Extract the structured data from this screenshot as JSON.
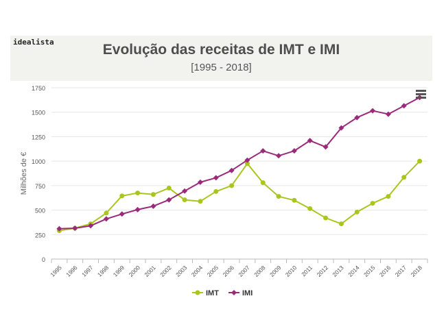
{
  "brand": "idealista",
  "chart_data": {
    "type": "line",
    "title": "Evolução das receitas de IMT e IMI",
    "subtitle": "[1995 - 2018]",
    "xlabel": "",
    "ylabel": "Milhões de €",
    "ylim": [
      0,
      1750
    ],
    "yticks": [
      "0",
      "250",
      "500",
      "750",
      "1000",
      "1250",
      "1500",
      "1750"
    ],
    "categories": [
      "1995",
      "1996",
      "1997",
      "1998",
      "1999",
      "2000",
      "2001",
      "2002",
      "2003",
      "2004",
      "2005",
      "2006",
      "2007",
      "2008",
      "2009",
      "2010",
      "2011",
      "2012",
      "2013",
      "2014",
      "2015",
      "2016",
      "2017",
      "2018"
    ],
    "grid": true,
    "legend": "bottom-center",
    "series": [
      {
        "name": "IMT",
        "color": "#a9c61f",
        "marker": "circle",
        "values": [
          290,
          315,
          360,
          470,
          645,
          675,
          660,
          725,
          605,
          590,
          690,
          750,
          975,
          780,
          640,
          600,
          515,
          420,
          360,
          480,
          570,
          640,
          835,
          1000
        ]
      },
      {
        "name": "IMI",
        "color": "#9b2a7b",
        "marker": "diamond",
        "values": [
          310,
          315,
          340,
          410,
          460,
          505,
          540,
          605,
          695,
          785,
          830,
          905,
          1010,
          1105,
          1055,
          1105,
          1210,
          1145,
          1340,
          1445,
          1515,
          1480,
          1565,
          1650
        ]
      }
    ]
  }
}
